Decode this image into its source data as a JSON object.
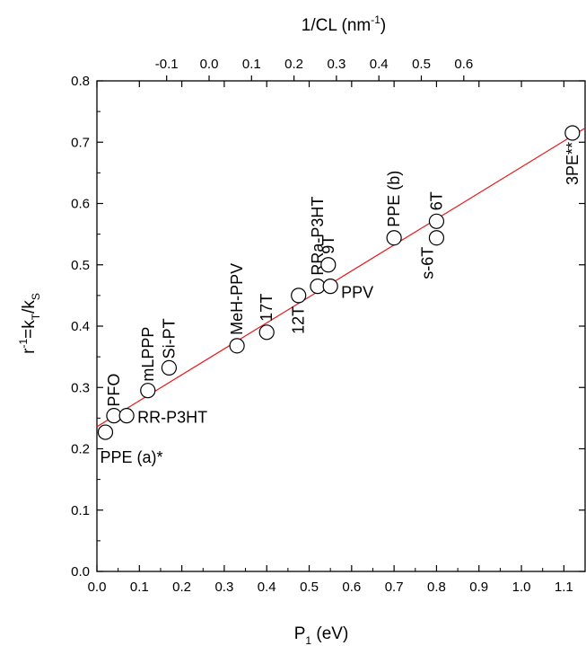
{
  "chart_data": {
    "type": "scatter",
    "x_axis": {
      "label_main": "P",
      "label_sub": "1",
      "label_tail": " (eV)",
      "range": [
        0.0,
        1.15
      ],
      "ticks": [
        "0.0",
        "0.1",
        "0.2",
        "0.3",
        "0.4",
        "0.5",
        "0.6",
        "0.7",
        "0.8",
        "0.9",
        "1.0",
        "1.1"
      ]
    },
    "x2_axis": {
      "label_main": "1/CL (nm",
      "label_sup": "-1",
      "label_tail": ")",
      "ticks": [
        {
          "label": "-0.1",
          "x": -0.1
        },
        {
          "label": "0.0",
          "x": 0.0
        },
        {
          "label": "0.1",
          "x": 0.1
        },
        {
          "label": "0.2",
          "x": 0.2
        },
        {
          "label": "0.3",
          "x": 0.3
        },
        {
          "label": "0.4",
          "x": 0.4
        },
        {
          "label": "0.5",
          "x": 0.5
        },
        {
          "label": "0.6",
          "x": 0.6
        }
      ]
    },
    "y_axis": {
      "label_r": "r",
      "label_r_sup": "-1",
      "label_eq": "=k",
      "label_t_sub": "T",
      "label_slash": "/k",
      "label_s_sub": "S",
      "range": [
        0.0,
        0.8
      ],
      "ticks": [
        "0.0",
        "0.1",
        "0.2",
        "0.3",
        "0.4",
        "0.5",
        "0.6",
        "0.7",
        "0.8"
      ]
    },
    "grid": false,
    "fit_line": {
      "color": "#e8191e",
      "x": [
        0.0,
        1.15
      ],
      "y": [
        0.236,
        0.723
      ]
    },
    "points": [
      {
        "label": "PPE (a)*",
        "x": 0.02,
        "y": 0.227
      },
      {
        "label": "PFO",
        "x": 0.04,
        "y": 0.254
      },
      {
        "label": "RR-P3HT",
        "x": 0.07,
        "y": 0.254
      },
      {
        "label": "mLPPP",
        "x": 0.12,
        "y": 0.295
      },
      {
        "label": "Si-PT",
        "x": 0.17,
        "y": 0.332
      },
      {
        "label": "MeH-PPV",
        "x": 0.33,
        "y": 0.368
      },
      {
        "label": "17T",
        "x": 0.4,
        "y": 0.39
      },
      {
        "label": "12T",
        "x": 0.475,
        "y": 0.45
      },
      {
        "label": "RRa-P3HT",
        "x": 0.52,
        "y": 0.465
      },
      {
        "label": "9T",
        "x": 0.545,
        "y": 0.5
      },
      {
        "label": "PPV",
        "x": 0.55,
        "y": 0.465
      },
      {
        "label": "PPE (b)",
        "x": 0.7,
        "y": 0.544
      },
      {
        "label": "s-6T",
        "x": 0.8,
        "y": 0.544
      },
      {
        "label": "6T",
        "x": 0.8,
        "y": 0.571
      },
      {
        "label": "3PE**",
        "x": 1.12,
        "y": 0.715
      }
    ]
  }
}
